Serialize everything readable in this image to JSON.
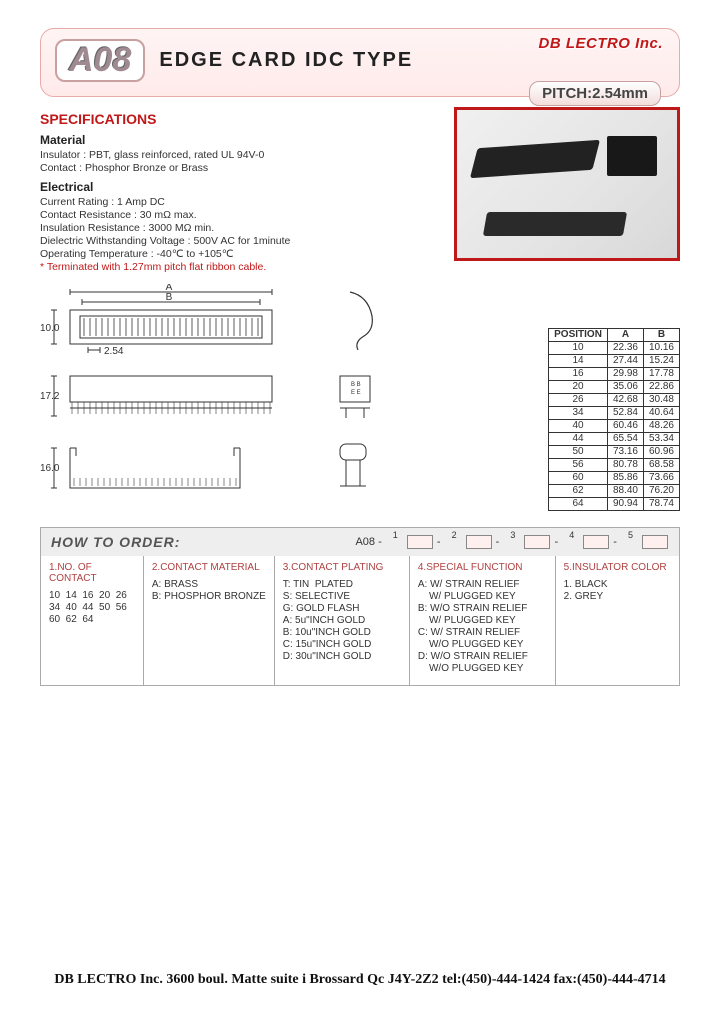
{
  "company": "DB LECTRO Inc.",
  "product_badge": "A08",
  "product_title": "EDGE  CARD  IDC TYPE",
  "pitch": "PITCH:2.54mm",
  "specifications": {
    "heading": "SPECIFICATIONS",
    "material": {
      "heading": "Material",
      "insulator": "Insulator : PBT, glass reinforced, rated UL 94V-0",
      "contact": "Contact : Phosphor Bronze or Brass"
    },
    "electrical": {
      "heading": "Electrical",
      "current": "Current Rating : 1 Amp DC",
      "contact_res": "Contact Resistance : 30 mΩ max.",
      "insulation_res": "Insulation Resistance : 3000 MΩ min.",
      "dielectric": "Dielectric Withstanding Voltage : 500V AC for 1minute",
      "temp": "Operating Temperature : -40℃ to +105℃",
      "note": "* Terminated with 1.27mm pitch flat ribbon cable."
    }
  },
  "dimensions": {
    "vA_label": "A",
    "vB_label": "B",
    "v10": "10.0",
    "v254": "2.54",
    "v172": "17.2",
    "v160": "16.0"
  },
  "dim_table": {
    "headers": [
      "POSITION",
      "A",
      "B"
    ],
    "rows": [
      [
        "10",
        "22.36",
        "10.16"
      ],
      [
        "14",
        "27.44",
        "15.24"
      ],
      [
        "16",
        "29.98",
        "17.78"
      ],
      [
        "20",
        "35.06",
        "22.86"
      ],
      [
        "26",
        "42.68",
        "30.48"
      ],
      [
        "34",
        "52.84",
        "40.64"
      ],
      [
        "40",
        "60.46",
        "48.26"
      ],
      [
        "44",
        "65.54",
        "53.34"
      ],
      [
        "50",
        "73.16",
        "60.96"
      ],
      [
        "56",
        "80.78",
        "68.58"
      ],
      [
        "60",
        "85.86",
        "73.66"
      ],
      [
        "62",
        "88.40",
        "76.20"
      ],
      [
        "64",
        "90.94",
        "78.74"
      ]
    ]
  },
  "order": {
    "heading": "HOW TO ORDER:",
    "prefix": "A08 -",
    "cols": [
      {
        "h": "1.NO. OF CONTACT",
        "lines": [
          "10  14  16  20  26",
          "34  40  44  50  56",
          "60  62  64"
        ]
      },
      {
        "h": "2.CONTACT MATERIAL",
        "lines": [
          "A: BRASS",
          "B: PHOSPHOR BRONZE"
        ]
      },
      {
        "h": "3.CONTACT PLATING",
        "lines": [
          "T: TIN  PLATED",
          "S: SELECTIVE",
          "G: GOLD FLASH",
          "A: 5u\"INCH GOLD",
          "B: 10u\"INCH GOLD",
          "C: 15u\"INCH GOLD",
          "D: 30u\"INCH GOLD"
        ]
      },
      {
        "h": "4.SPECIAL  FUNCTION",
        "lines": [
          "A: W/ STRAIN RELIEF",
          "    W/ PLUGGED KEY",
          "B: W/O STRAIN RELIEF",
          "    W/ PLUGGED KEY",
          "C: W/ STRAIN RELIEF",
          "    W/O PLUGGED KEY",
          "D: W/O STRAIN RELIEF",
          "    W/O PLUGGED KEY"
        ]
      },
      {
        "h": "5.INSULATOR COLOR",
        "lines": [
          "1. BLACK",
          "2. GREY"
        ]
      }
    ]
  },
  "footer": "DB LECTRO Inc. 3600 boul. Matte suite i Brossard Qc J4Y-2Z2 tel:(450)-444-1424 fax:(450)-444-4714"
}
